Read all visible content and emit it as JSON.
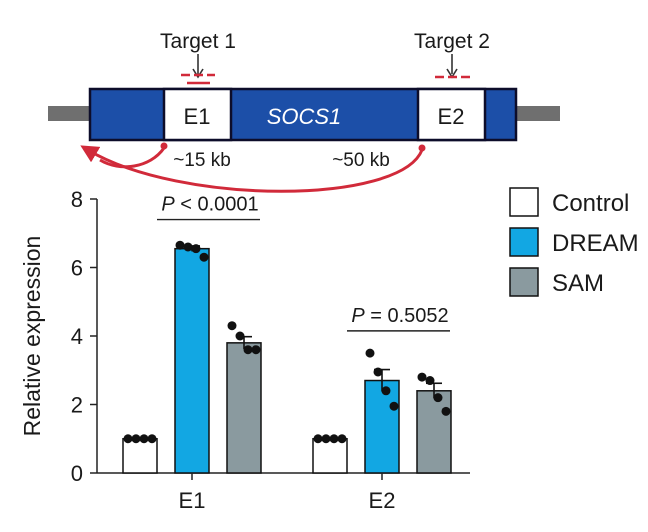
{
  "colors": {
    "gene_blue": "#1c4fa8",
    "outline": "#0d0d2a",
    "flank_gray": "#6f6f6f",
    "arc_red": "#d12a3a",
    "target_red": "#d12a3a",
    "control": "#ffffff",
    "dream": "#12a7e3",
    "sam": "#8a9a9f",
    "text": "#1a1a1a"
  },
  "diagram": {
    "target1_label": "Target 1",
    "target2_label": "Target 2",
    "exon1_label": "E1",
    "exon2_label": "E2",
    "gene_label": "SOCS1",
    "distance1": "~15 kb",
    "distance2": "~50 kb"
  },
  "chart_data": {
    "type": "bar",
    "title": "",
    "xlabel": "",
    "ylabel": "Relative expression",
    "ylim": [
      0,
      8
    ],
    "yticks": [
      0,
      2,
      4,
      6,
      8
    ],
    "categories": [
      "E1",
      "E2"
    ],
    "series": [
      {
        "name": "Control",
        "color": "#ffffff",
        "values": [
          1.0,
          1.0
        ],
        "errors": [
          0,
          0
        ],
        "points": [
          [
            1.0,
            1.0,
            1.0,
            1.0
          ],
          [
            1.0,
            1.0,
            1.0,
            1.0
          ]
        ]
      },
      {
        "name": "DREAM",
        "color": "#12a7e3",
        "values": [
          6.55,
          2.7
        ],
        "errors": [
          0.08,
          0.32
        ],
        "points": [
          [
            6.65,
            6.6,
            6.55,
            6.3
          ],
          [
            3.5,
            2.95,
            2.4,
            1.95
          ]
        ]
      },
      {
        "name": "SAM",
        "color": "#8a9a9f",
        "values": [
          3.8,
          2.4
        ],
        "errors": [
          0.18,
          0.22
        ],
        "points": [
          [
            4.3,
            4.0,
            3.6,
            3.6
          ],
          [
            2.8,
            2.7,
            2.2,
            1.8
          ]
        ]
      }
    ],
    "annotations": [
      {
        "category": "E1",
        "label_italic": "P",
        "label_rest": " < 0.0001"
      },
      {
        "category": "E2",
        "label_italic": "P",
        "label_rest": " = 0.5052"
      }
    ],
    "legend": {
      "placement": "top-right",
      "entries": [
        "Control",
        "DREAM",
        "SAM"
      ]
    }
  }
}
